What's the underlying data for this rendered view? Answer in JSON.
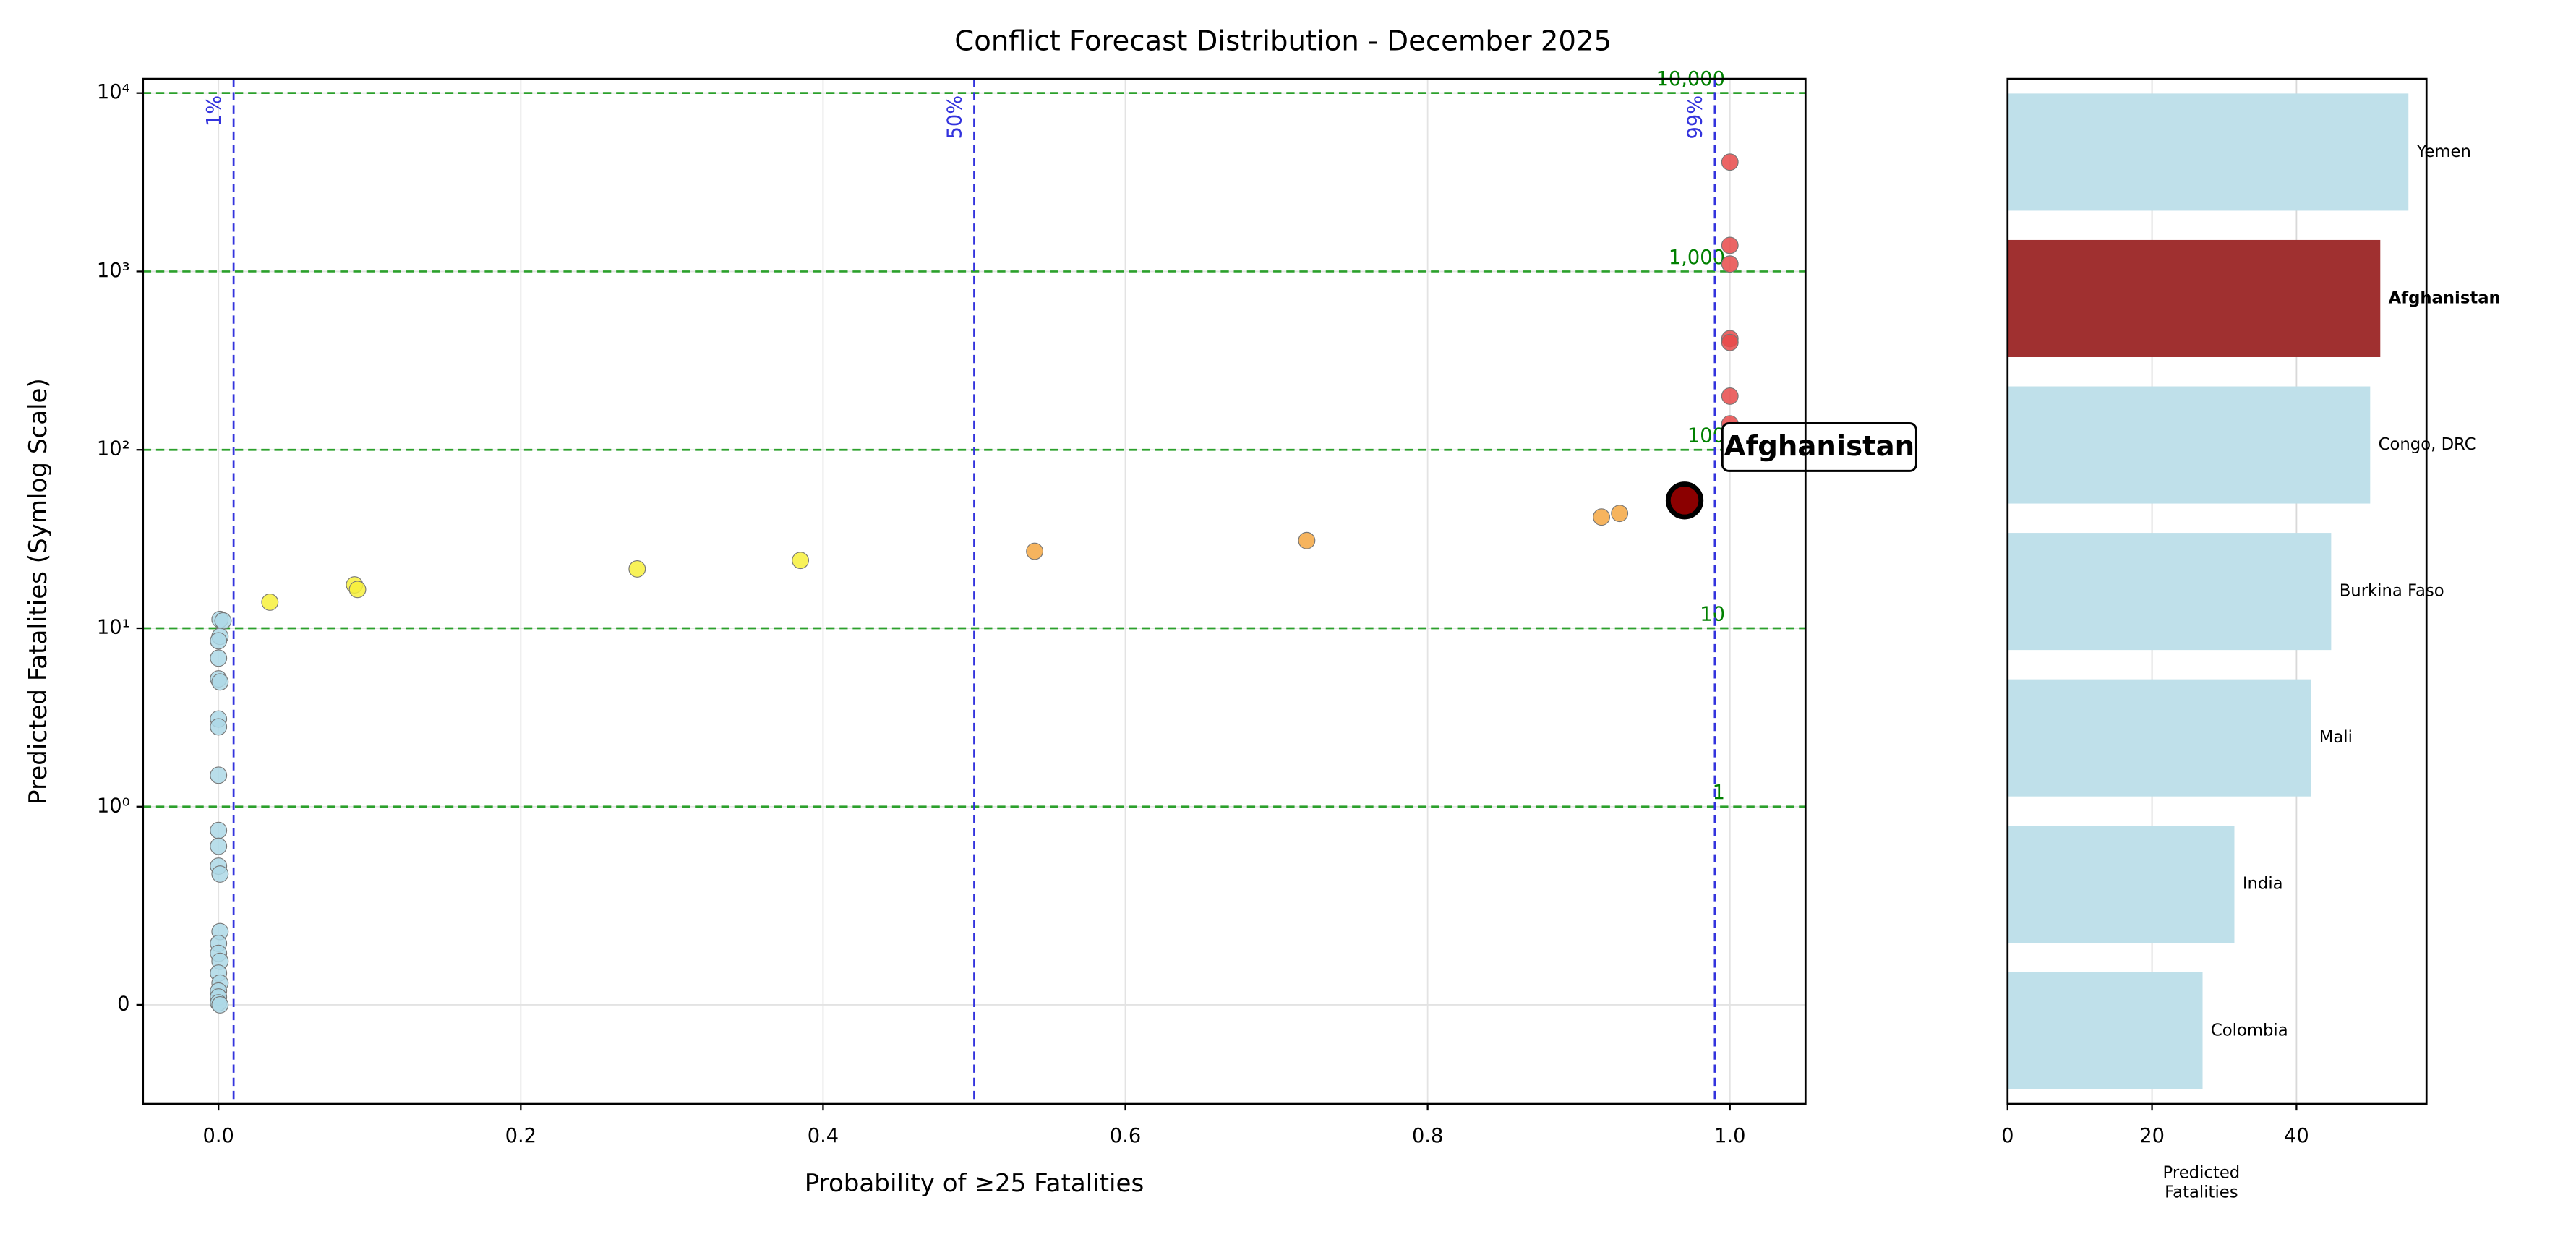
{
  "chart_data": [
    {
      "type": "scatter",
      "title": "Conflict Forecast Distribution - December 2025",
      "x_label": "Probability of ≥25 Fatalities",
      "y_label": "Predicted Fatalities (Symlog Scale)",
      "yscale": "symlog",
      "linthresh": 1,
      "xlim": [
        -0.05,
        1.05
      ],
      "ylim": [
        -0.5,
        12000
      ],
      "xticks": [
        {
          "value": 0,
          "label": "0.0"
        },
        0.2,
        0.4,
        0.6,
        0.8,
        {
          "value": 1,
          "label": "1.0"
        }
      ],
      "yticks": [
        0,
        {
          "value": 1,
          "label": "10⁰"
        },
        {
          "value": 10,
          "label": "10¹"
        },
        {
          "value": 100,
          "label": "10²"
        },
        {
          "value": 1000,
          "label": "10³"
        },
        {
          "value": 10000,
          "label": "10⁴"
        }
      ],
      "grid": true,
      "series": [
        {
          "color": "#add8e6",
          "x": [
            0.001,
            0.003,
            0.001,
            0.0,
            0.0,
            0.0,
            0.001,
            0.0,
            0.0,
            0.0,
            0.0,
            0.0,
            0.0,
            0.001,
            0.001,
            0.0,
            0.0,
            0.001,
            0.0,
            0.001,
            0.0,
            0.0,
            0.0,
            0.001
          ],
          "values": [
            11.2,
            11,
            9,
            8.5,
            6.8,
            5.2,
            5,
            3.1,
            2.8,
            1.5,
            0.88,
            0.8,
            0.7,
            0.66,
            0.37,
            0.31,
            0.26,
            0.22,
            0.16,
            0.11,
            0.07,
            0.04,
            0.01,
            0
          ]
        },
        {
          "color": "#f7f03c",
          "x": [
            0.034,
            0.09,
            0.092,
            0.277,
            0.385
          ],
          "values": [
            14,
            17.5,
            16.5,
            21.5,
            24
          ]
        },
        {
          "color": "#f5a742",
          "x": [
            0.54,
            0.72,
            0.915,
            0.927
          ],
          "values": [
            27,
            31,
            42,
            44
          ]
        },
        {
          "color": "#e84a4a",
          "x": [
            1,
            1,
            1,
            1,
            1,
            1,
            1
          ],
          "values": [
            4100,
            1400,
            1100,
            420,
            400,
            200,
            140
          ]
        }
      ],
      "hlines": {
        "color": "#2ca02c",
        "lines": [
          {
            "value": 1,
            "label": "1"
          },
          {
            "value": 10,
            "label": "10"
          },
          {
            "value": 100,
            "label": "100"
          },
          {
            "value": 1000,
            "label": "1,000"
          },
          {
            "value": 10000,
            "label": "10,000"
          }
        ]
      },
      "vlines": {
        "color": "#3333dd",
        "lines": [
          {
            "value": 0.01,
            "label": "1%"
          },
          {
            "value": 0.5,
            "label": "50%"
          },
          {
            "value": 0.99,
            "label": "99%"
          }
        ]
      },
      "annotation": {
        "text": "Afghanistan",
        "x": 0.97,
        "y": 52,
        "color": "#8b0000"
      }
    },
    {
      "type": "barh",
      "categories": [
        "Yemen",
        "Afghanistan",
        "Congo, DRC",
        "Burkina Faso",
        "Mali",
        "India",
        "Colombia"
      ],
      "values": [
        55.5,
        51.6,
        50.2,
        44.8,
        42,
        31.4,
        27
      ],
      "colors": [
        "#bfe0ea",
        "#a03030",
        "#bfe0ea",
        "#bfe0ea",
        "#bfe0ea",
        "#bfe0ea",
        "#bfe0ea"
      ],
      "x_label": "Predicted Fatalities",
      "xlim": [
        0,
        58
      ],
      "xticks": [
        0,
        20,
        40
      ],
      "grid": true
    }
  ]
}
